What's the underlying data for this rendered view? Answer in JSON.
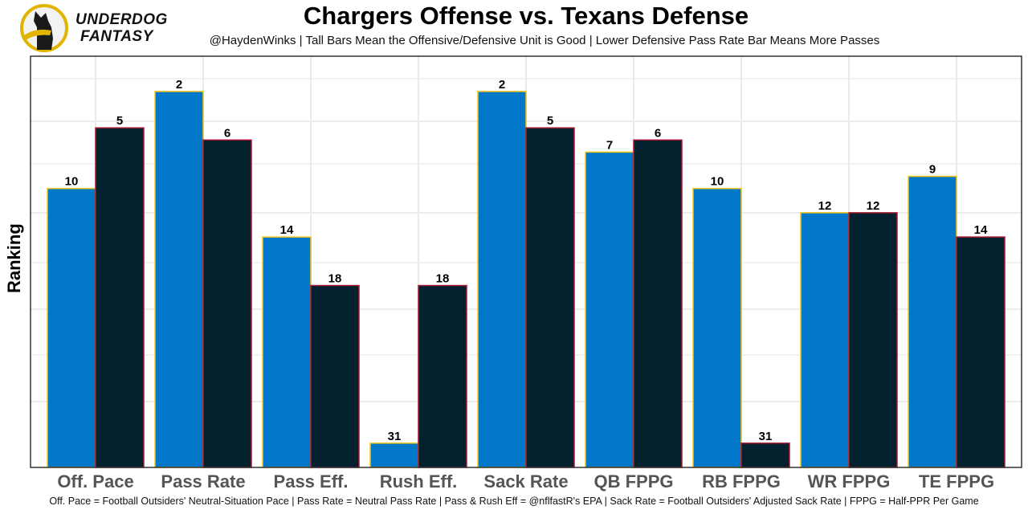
{
  "header": {
    "logo_text_line1": "UNDERDOG",
    "logo_text_line2": "FANTASY",
    "logo_icon": "underdog-dog-icon"
  },
  "colors": {
    "offense_fill": "#0077C8",
    "offense_stroke": "#F5C518",
    "defense_fill": "#03202F",
    "defense_stroke": "#A71930",
    "category_label": "#555555",
    "gridline": "#EBEBEB",
    "panel_border": "#333333"
  },
  "chart_data": {
    "type": "bar",
    "title": "Chargers Offense vs. Texans Defense",
    "subtitle": "@HaydenWinks | Tall Bars Mean the Offensive/Defensive Unit is Good | Lower Defensive Pass Rate Bar Means More Passes",
    "xlabel": "",
    "ylabel": "Ranking",
    "footnote": "Off. Pace = Football Outsiders' Neutral-Situation Pace | Pass Rate = Neutral Pass Rate | Pass & Rush Eff = @nflfastR's EPA | Sack Rate = Football Outsiders' Adjusted Sack Rate | FPPG = Half-PPR Per Game",
    "categories": [
      "Off. Pace",
      "Pass Rate",
      "Pass Eff.",
      "Rush Eff.",
      "Sack Rate",
      "QB FPPG",
      "RB FPPG",
      "WR FPPG",
      "TE FPPG"
    ],
    "series": [
      {
        "name": "Chargers Offense",
        "values": [
          10,
          2,
          14,
          31,
          2,
          7,
          10,
          12,
          9
        ]
      },
      {
        "name": "Texans Defense",
        "values": [
          5,
          6,
          18,
          18,
          5,
          6,
          31,
          12,
          14
        ]
      }
    ],
    "rank_scale_max": 33,
    "bar_height_rule": "height proportional to (33 - rank); rank 1 is best",
    "grid": true,
    "legend": "none"
  }
}
